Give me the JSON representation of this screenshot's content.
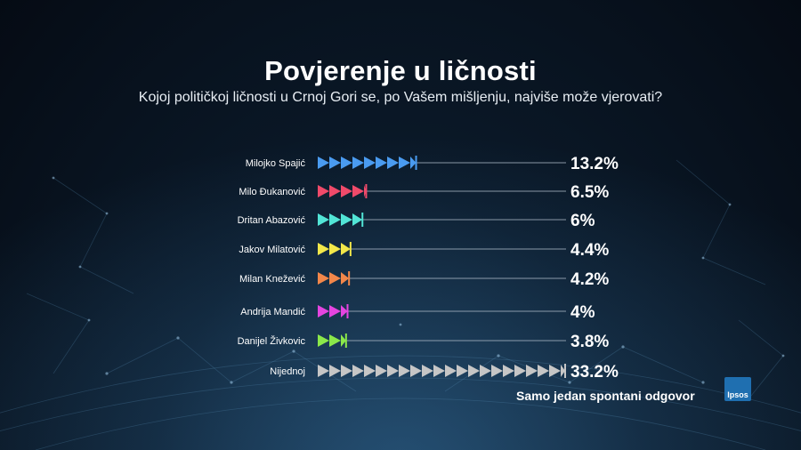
{
  "header": {
    "title": "Povjerenje u ličnosti",
    "subtitle": "Kojoj političkoj ličnosti u Crnoj Gori se, po Vašem mišljenju, najviše može vjerovati?"
  },
  "footer": {
    "note": "Samo jedan spontani odgovor",
    "logo": "Ipsos"
  },
  "chart_data": {
    "type": "bar",
    "orientation": "horizontal",
    "title": "Povjerenje u ličnosti",
    "subtitle": "Kojoj političkoj ličnosti u Crnoj Gori se, po Vašem mišljenju, najviše može vjerovati?",
    "categories": [
      "Milojko Spajić",
      "Milo Đukanović",
      "Dritan Abazović",
      "Jakov Milatović",
      "Milan Knežević",
      "Andrija Mandić",
      "Danijel Živkovic",
      "Nijednoj"
    ],
    "values": [
      13.2,
      6.5,
      6,
      4.4,
      4.2,
      4,
      3.8,
      33.2
    ],
    "value_labels": [
      "13.2%",
      "6.5%",
      "6%",
      "4.4%",
      "4.2%",
      "4%",
      "3.8%",
      "33.2%"
    ],
    "colors": [
      "#4a9bf0",
      "#f04a6a",
      "#52e5d6",
      "#f3e84a",
      "#f2874a",
      "#e545e0",
      "#8be84a",
      "#c6c6c6"
    ],
    "xlabel": "",
    "ylabel": "",
    "grid": false,
    "legend": "none"
  }
}
